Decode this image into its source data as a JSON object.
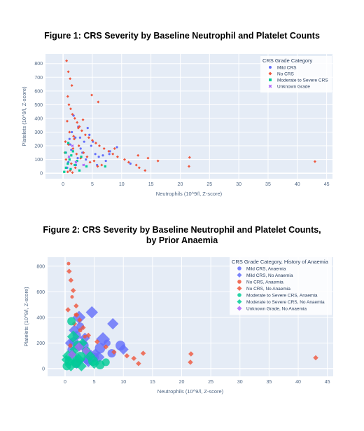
{
  "figure1": {
    "title": "Figure 1: CRS Severity by Baseline Neutrophil and Platelet Counts"
  },
  "figure2": {
    "title_line1": "Figure 2: CRS Severity by Baseline Neutrophil and Platelet Counts,",
    "title_line2": "by Prior Anaemia"
  },
  "chart_data": [
    {
      "type": "scatter",
      "title": "Figure 1: CRS Severity by Baseline Neutrophil and Platelet Counts",
      "xlabel": "Neutrophils (10^9/l, Z-score)",
      "ylabel": "Platelets (10^9/l, Z-score)",
      "xlim": [
        -3,
        46
      ],
      "ylim": [
        -40,
        870
      ],
      "xticks": [
        0,
        5,
        10,
        15,
        20,
        25,
        30,
        35,
        40,
        45
      ],
      "yticks": [
        0,
        100,
        200,
        300,
        400,
        500,
        600,
        700,
        800
      ],
      "grid": true,
      "legend_title": "CRS Grade Category",
      "legend_position": "top-right",
      "series": [
        {
          "name": "Mild CRS",
          "color": "#636efa",
          "symbol": "circle",
          "x": [
            0.5,
            1.2,
            2.1,
            3.0,
            4.2,
            5.5,
            6.1,
            7.3,
            8.0,
            1.8,
            2.5,
            3.6,
            4.8,
            0.9,
            1.5,
            2.9,
            5.1,
            6.8,
            11.5,
            9.2,
            2.2,
            3.3,
            1.1,
            0.7,
            4.5,
            3.9,
            2.6,
            1.4,
            5.8,
            7.9
          ],
          "y": [
            150,
            210,
            260,
            180,
            330,
            140,
            120,
            90,
            160,
            420,
            110,
            230,
            200,
            80,
            300,
            260,
            230,
            130,
            70,
            190,
            60,
            150,
            250,
            40,
            280,
            100,
            340,
            170,
            60,
            140
          ]
        },
        {
          "name": "No CRS",
          "color": "#ef553b",
          "symbol": "diamond",
          "x": [
            0.6,
            0.9,
            1.2,
            1.5,
            0.8,
            1.0,
            1.3,
            1.6,
            2.0,
            2.4,
            2.8,
            3.2,
            3.8,
            4.4,
            5.0,
            5.6,
            6.2,
            7.0,
            7.8,
            8.5,
            9.3,
            10.5,
            11.2,
            12.5,
            13.0,
            14.0,
            14.5,
            16.2,
            21.6,
            21.5,
            43.0,
            0.7,
            1.1,
            1.9,
            2.7,
            3.5,
            4.1,
            5.3,
            6.6,
            0.4,
            1.7,
            2.3,
            3.0,
            4.6,
            5.9,
            0.5,
            1.4,
            2.1,
            0.3,
            0.9,
            1.8,
            2.6,
            3.4,
            4.9,
            6.0,
            8.8,
            12.8,
            1.2,
            0.8,
            1.6
          ],
          "y": [
            820,
            740,
            690,
            640,
            560,
            500,
            470,
            430,
            400,
            370,
            340,
            310,
            280,
            260,
            240,
            220,
            200,
            180,
            160,
            140,
            120,
            100,
            80,
            60,
            40,
            20,
            110,
            90,
            115,
            50,
            85,
            380,
            300,
            250,
            200,
            150,
            120,
            90,
            60,
            230,
            180,
            140,
            110,
            80,
            50,
            100,
            70,
            40,
            150,
            210,
            270,
            330,
            390,
            570,
            520,
            180,
            130,
            20,
            10,
            5
          ]
        },
        {
          "name": "Moderate to Severe CRS",
          "color": "#00cc96",
          "symbol": "square",
          "x": [
            0.2,
            0.5,
            0.8,
            1.1,
            1.4,
            1.7,
            2.0,
            2.4,
            3.1,
            4.0,
            7.2,
            0.4,
            0.9,
            1.3,
            2.8
          ],
          "y": [
            10,
            40,
            70,
            100,
            130,
            160,
            60,
            90,
            120,
            50,
            50,
            150,
            220,
            30,
            20
          ]
        },
        {
          "name": "Unknown Grade",
          "color": "#ab63fa",
          "symbol": "x",
          "x": [
            1.0,
            2.2,
            3.5,
            1.6
          ],
          "y": [
            120,
            80,
            60,
            200
          ]
        }
      ]
    },
    {
      "type": "scatter",
      "title": "Figure 2: CRS Severity by Baseline Neutrophil and Platelet Counts, by Prior Anaemia",
      "xlabel": "Neutrophils (10^9/l, Z-score)",
      "ylabel": "Platelets (10^9/l, Z-score)",
      "xlim": [
        -3,
        46
      ],
      "ylim": [
        -60,
        870
      ],
      "xticks": [
        0,
        5,
        10,
        15,
        20,
        25,
        30,
        35,
        40,
        45
      ],
      "yticks": [
        0,
        200,
        400,
        600,
        800
      ],
      "grid": true,
      "legend_title": "CRS Grade Category, History of Anaemia",
      "legend_position": "top-right",
      "series": [
        {
          "name": "Mild CRS, Anaemia",
          "color": "#636efa",
          "symbol": "circle",
          "x": [
            1.0,
            2.0,
            3.2,
            4.1,
            5.0,
            6.0,
            7.2,
            8.0,
            9.5,
            2.6,
            3.8,
            1.5
          ],
          "y": [
            150,
            260,
            180,
            120,
            90,
            160,
            200,
            120,
            180,
            330,
            70,
            210
          ],
          "size": [
            8,
            10,
            12,
            9,
            11,
            13,
            8,
            10,
            12,
            9,
            10,
            11
          ]
        },
        {
          "name": "Mild CRS, No Anaemia",
          "color": "#636efa",
          "symbol": "diamond",
          "x": [
            0.8,
            1.6,
            2.4,
            3.4,
            4.6,
            5.2,
            6.5,
            8.2,
            10.0,
            4.0,
            2.0,
            5.8
          ],
          "y": [
            200,
            300,
            400,
            240,
            440,
            120,
            230,
            350,
            150,
            60,
            50,
            90
          ],
          "size": [
            9,
            11,
            13,
            10,
            12,
            9,
            14,
            11,
            10,
            12,
            13,
            11
          ]
        },
        {
          "name": "No CRS, Anaemia",
          "color": "#ef553b",
          "symbol": "circle",
          "x": [
            0.6,
            1.2,
            1.8,
            2.6,
            3.4,
            0.9,
            1.5,
            2.2
          ],
          "y": [
            820,
            560,
            420,
            300,
            250,
            180,
            120,
            60
          ],
          "size": [
            3,
            3,
            3,
            4,
            3,
            4,
            3,
            4
          ]
        },
        {
          "name": "No CRS, No Anaemia",
          "color": "#ef553b",
          "symbol": "diamond",
          "x": [
            0.7,
            1.0,
            1.4,
            1.9,
            2.5,
            3.1,
            4.0,
            5.5,
            7.0,
            8.4,
            10.6,
            11.8,
            12.6,
            13.4,
            21.6,
            21.5,
            43.0,
            0.5,
            1.6,
            2.0
          ],
          "y": [
            760,
            690,
            610,
            490,
            380,
            320,
            260,
            210,
            170,
            130,
            100,
            80,
            40,
            120,
            115,
            50,
            85,
            460,
            350,
            420
          ],
          "size": [
            4,
            4,
            4,
            4,
            4,
            4,
            4,
            4,
            4,
            4,
            4,
            4,
            4,
            4,
            4,
            4,
            4,
            4,
            4,
            4
          ]
        },
        {
          "name": "Moderate to Severe CRS, Anaemia",
          "color": "#00cc96",
          "symbol": "circle",
          "x": [
            0.3,
            0.8,
            1.3,
            1.9,
            2.6,
            3.6,
            4.8,
            6.0,
            7.0,
            1.1,
            2.2
          ],
          "y": [
            20,
            60,
            110,
            40,
            90,
            140,
            60,
            30,
            50,
            370,
            180
          ],
          "size": [
            10,
            12,
            9,
            11,
            13,
            10,
            12,
            11,
            9,
            10,
            12
          ]
        },
        {
          "name": "Moderate to Severe CRS, No Anaemia",
          "color": "#00cc96",
          "symbol": "diamond",
          "x": [
            0.5,
            1.0,
            1.7,
            2.3,
            3.0,
            4.2,
            5.0,
            0.2,
            1.4,
            2.8
          ],
          "y": [
            100,
            30,
            150,
            70,
            200,
            100,
            40,
            70,
            250,
            20
          ],
          "size": [
            11,
            13,
            10,
            12,
            9,
            11,
            10,
            9,
            12,
            10
          ]
        },
        {
          "name": "Unknown Grade, No Anaemia",
          "color": "#ab63fa",
          "symbol": "diamond",
          "x": [
            1.2,
            2.4,
            3.6
          ],
          "y": [
            110,
            170,
            140
          ],
          "size": [
            8,
            9,
            8
          ]
        }
      ]
    }
  ]
}
